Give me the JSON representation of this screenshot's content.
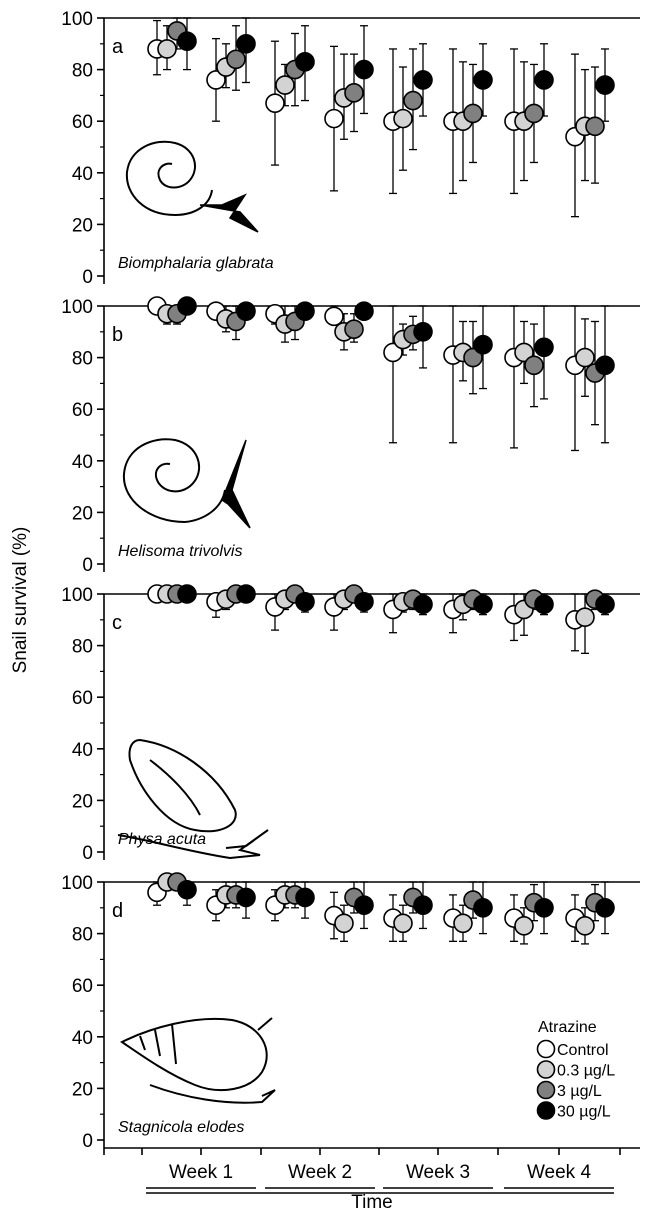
{
  "chart_data": {
    "type": "scatter",
    "ylabel": "Snail survival (%)",
    "xlabel": "Time",
    "categories": [
      "Week 1",
      "Week 2",
      "Week 3",
      "Week 4"
    ],
    "ylim": [
      0,
      100
    ],
    "yticks": [
      0,
      20,
      40,
      60,
      80,
      100
    ],
    "legend": {
      "title": "Atrazine",
      "placement": "bottom-right",
      "entries": [
        "Control",
        "0.3 µg/L",
        "3 µg/L",
        "30 µg/L"
      ]
    },
    "series_colors": [
      "#ffffff",
      "#d3d3d3",
      "#808080",
      "#000000"
    ],
    "panels": [
      {
        "letter": "a",
        "species": "Biomphalaria glabrata",
        "points": [
          {
            "t": 1,
            "values": [
              88,
              88,
              95,
              91
            ],
            "lower": [
              78,
              80,
              88,
              80
            ],
            "upper": [
              99,
              97,
              100,
              100
            ]
          },
          {
            "t": 2,
            "values": [
              76,
              81,
              84,
              90
            ],
            "lower": [
              60,
              73,
              72,
              75
            ],
            "upper": [
              92,
              90,
              97,
              100
            ]
          },
          {
            "t": 3,
            "values": [
              67,
              74,
              80,
              83
            ],
            "lower": [
              43,
              66,
              66,
              68
            ],
            "upper": [
              91,
              82,
              94,
              97
            ]
          },
          {
            "t": 4,
            "values": [
              61,
              69,
              71,
              80
            ],
            "lower": [
              33,
              53,
              56,
              63
            ],
            "upper": [
              89,
              86,
              86,
              97
            ]
          },
          {
            "t": 5,
            "values": [
              60,
              61,
              68,
              76
            ],
            "lower": [
              32,
              41,
              49,
              62
            ],
            "upper": [
              88,
              81,
              88,
              90
            ]
          },
          {
            "t": 6,
            "values": [
              60,
              60,
              63,
              76
            ],
            "lower": [
              32,
              37,
              44,
              62
            ],
            "upper": [
              88,
              83,
              82,
              90
            ]
          },
          {
            "t": 7,
            "values": [
              60,
              60,
              63,
              76
            ],
            "lower": [
              32,
              37,
              44,
              62
            ],
            "upper": [
              88,
              83,
              82,
              90
            ]
          },
          {
            "t": 8,
            "values": [
              54,
              58,
              58,
              74
            ],
            "lower": [
              23,
              37,
              36,
              60
            ],
            "upper": [
              86,
              80,
              81,
              88
            ]
          }
        ]
      },
      {
        "letter": "b",
        "species": "Helisoma trivolvis",
        "points": [
          {
            "t": 1,
            "values": [
              100,
              97,
              97,
              100
            ],
            "lower": [
              100,
              93,
              93,
              100
            ],
            "upper": [
              100,
              100,
              100,
              100
            ]
          },
          {
            "t": 2,
            "values": [
              98,
              95,
              94,
              98
            ],
            "lower": [
              95,
              90,
              87,
              95
            ],
            "upper": [
              100,
              100,
              100,
              100
            ]
          },
          {
            "t": 3,
            "values": [
              97,
              93,
              94,
              98
            ],
            "lower": [
              93,
              86,
              87,
              95
            ],
            "upper": [
              100,
              100,
              100,
              100
            ]
          },
          {
            "t": 4,
            "values": [
              96,
              90,
              91,
              98
            ],
            "lower": [
              93,
              83,
              86,
              95
            ],
            "upper": [
              100,
              97,
              97,
              100
            ]
          },
          {
            "t": 5,
            "values": [
              82,
              87,
              89,
              90
            ],
            "lower": [
              47,
              81,
              83,
              76
            ],
            "upper": [
              100,
              93,
              96,
              100
            ]
          },
          {
            "t": 6,
            "values": [
              81,
              82,
              80,
              85
            ],
            "lower": [
              47,
              71,
              66,
              68
            ],
            "upper": [
              100,
              94,
              94,
              100
            ]
          },
          {
            "t": 7,
            "values": [
              80,
              82,
              77,
              84
            ],
            "lower": [
              45,
              70,
              61,
              64
            ],
            "upper": [
              100,
              94,
              93,
              100
            ]
          },
          {
            "t": 8,
            "values": [
              77,
              80,
              74,
              77
            ],
            "lower": [
              44,
              65,
              54,
              47
            ],
            "upper": [
              100,
              95,
              94,
              100
            ]
          }
        ]
      },
      {
        "letter": "c",
        "species": "Physa acuta",
        "points": [
          {
            "t": 1,
            "values": [
              100,
              100,
              100,
              100
            ],
            "lower": [
              100,
              100,
              100,
              100
            ],
            "upper": [
              100,
              100,
              100,
              100
            ]
          },
          {
            "t": 2,
            "values": [
              97,
              98,
              100,
              100
            ],
            "lower": [
              91,
              94,
              100,
              100
            ],
            "upper": [
              100,
              100,
              100,
              100
            ]
          },
          {
            "t": 3,
            "values": [
              95,
              98,
              100,
              97
            ],
            "lower": [
              86,
              94,
              100,
              93
            ],
            "upper": [
              100,
              100,
              100,
              100
            ]
          },
          {
            "t": 4,
            "values": [
              95,
              98,
              100,
              97
            ],
            "lower": [
              86,
              94,
              100,
              93
            ],
            "upper": [
              100,
              100,
              100,
              100
            ]
          },
          {
            "t": 5,
            "values": [
              94,
              97,
              98,
              96
            ],
            "lower": [
              85,
              93,
              94,
              92
            ],
            "upper": [
              100,
              100,
              100,
              100
            ]
          },
          {
            "t": 6,
            "values": [
              94,
              96,
              98,
              96
            ],
            "lower": [
              85,
              90,
              94,
              92
            ],
            "upper": [
              100,
              100,
              100,
              100
            ]
          },
          {
            "t": 7,
            "values": [
              92,
              94,
              98,
              96
            ],
            "lower": [
              82,
              84,
              94,
              92
            ],
            "upper": [
              100,
              100,
              100,
              100
            ]
          },
          {
            "t": 8,
            "values": [
              90,
              91,
              98,
              96
            ],
            "lower": [
              78,
              77,
              94,
              92
            ],
            "upper": [
              100,
              100,
              100,
              100
            ]
          }
        ]
      },
      {
        "letter": "d",
        "species": "Stagnicola elodes",
        "points": [
          {
            "t": 1,
            "values": [
              96,
              100,
              100,
              97
            ],
            "lower": [
              91,
              100,
              100,
              91
            ],
            "upper": [
              100,
              100,
              100,
              100
            ]
          },
          {
            "t": 2,
            "values": [
              91,
              95,
              95,
              94
            ],
            "lower": [
              85,
              90,
              90,
              86
            ],
            "upper": [
              97,
              100,
              100,
              100
            ]
          },
          {
            "t": 3,
            "values": [
              91,
              95,
              95,
              94
            ],
            "lower": [
              85,
              90,
              90,
              86
            ],
            "upper": [
              97,
              100,
              100,
              100
            ]
          },
          {
            "t": 4,
            "values": [
              87,
              84,
              94,
              91
            ],
            "lower": [
              78,
              77,
              88,
              82
            ],
            "upper": [
              96,
              91,
              100,
              100
            ]
          },
          {
            "t": 5,
            "values": [
              86,
              84,
              94,
              91
            ],
            "lower": [
              77,
              77,
              88,
              82
            ],
            "upper": [
              95,
              91,
              100,
              100
            ]
          },
          {
            "t": 6,
            "values": [
              86,
              84,
              93,
              90
            ],
            "lower": [
              77,
              77,
              86,
              80
            ],
            "upper": [
              95,
              91,
              100,
              100
            ]
          },
          {
            "t": 7,
            "values": [
              86,
              83,
              92,
              90
            ],
            "lower": [
              77,
              76,
              85,
              80
            ],
            "upper": [
              95,
              90,
              99,
              100
            ]
          },
          {
            "t": 8,
            "values": [
              86,
              83,
              92,
              90
            ],
            "lower": [
              77,
              76,
              85,
              80
            ],
            "upper": [
              95,
              90,
              99,
              100
            ]
          }
        ]
      }
    ]
  }
}
